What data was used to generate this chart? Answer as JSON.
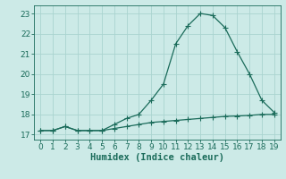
{
  "x": [
    0,
    1,
    2,
    3,
    4,
    5,
    6,
    7,
    8,
    9,
    10,
    11,
    12,
    13,
    14,
    15,
    16,
    17,
    18,
    19
  ],
  "y_upper": [
    17.2,
    17.2,
    17.4,
    17.2,
    17.2,
    17.2,
    17.5,
    17.8,
    18.0,
    18.7,
    19.5,
    21.5,
    22.4,
    23.0,
    22.9,
    22.3,
    21.1,
    20.0,
    18.7,
    18.1
  ],
  "y_lower": [
    17.2,
    17.2,
    17.4,
    17.2,
    17.2,
    17.2,
    17.3,
    17.4,
    17.5,
    17.6,
    17.65,
    17.7,
    17.75,
    17.8,
    17.85,
    17.9,
    17.92,
    17.95,
    18.0,
    18.0
  ],
  "line_color": "#1a6b5a",
  "bg_color": "#cceae7",
  "grid_color": "#aad4d0",
  "xlabel": "Humidex (Indice chaleur)",
  "xlim": [
    -0.5,
    19.5
  ],
  "ylim": [
    16.75,
    23.4
  ],
  "yticks": [
    17,
    18,
    19,
    20,
    21,
    22,
    23
  ],
  "xticks": [
    0,
    1,
    2,
    3,
    4,
    5,
    6,
    7,
    8,
    9,
    10,
    11,
    12,
    13,
    14,
    15,
    16,
    17,
    18,
    19
  ],
  "xlabel_fontsize": 7.5,
  "tick_fontsize": 6.5,
  "marker_size": 2.0,
  "line_width": 0.9
}
